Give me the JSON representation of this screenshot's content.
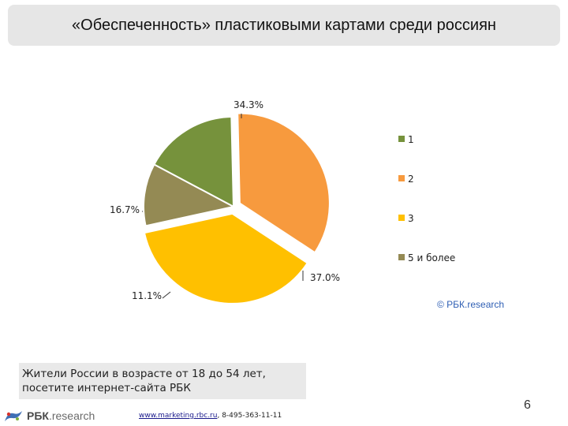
{
  "header": {
    "title": "«Обеспеченность» пластиковыми картами среди россиян"
  },
  "chart_data": {
    "type": "pie",
    "title": "",
    "categories": [
      "1",
      "2",
      "3",
      "5 и более"
    ],
    "values": [
      16.7,
      34.3,
      37.0,
      11.1
    ],
    "value_labels": [
      "16.7%",
      "34.3%",
      "37.0%",
      "11.1%"
    ],
    "colors": [
      "#76923c",
      "#f79a3e",
      "#ffc000",
      "#948a54"
    ],
    "legend": {
      "position": "right",
      "items": [
        {
          "label": "1",
          "color": "#76923c"
        },
        {
          "label": "2",
          "color": "#f79a3e"
        },
        {
          "label": "3",
          "color": "#ffc000"
        },
        {
          "label": "5 и более",
          "color": "#948a54"
        }
      ]
    }
  },
  "source": {
    "copyright": "© РБК.research"
  },
  "note": {
    "text": "Жители России в возрасте от 18 до 54 лет, посетите интернет-сайта РБК"
  },
  "footer": {
    "logo_main": "РБК",
    "logo_suffix": ".research",
    "website": "www.marketing.rbc.ru",
    "phone": ", 8-495-363-11-11",
    "page_number": "6"
  }
}
